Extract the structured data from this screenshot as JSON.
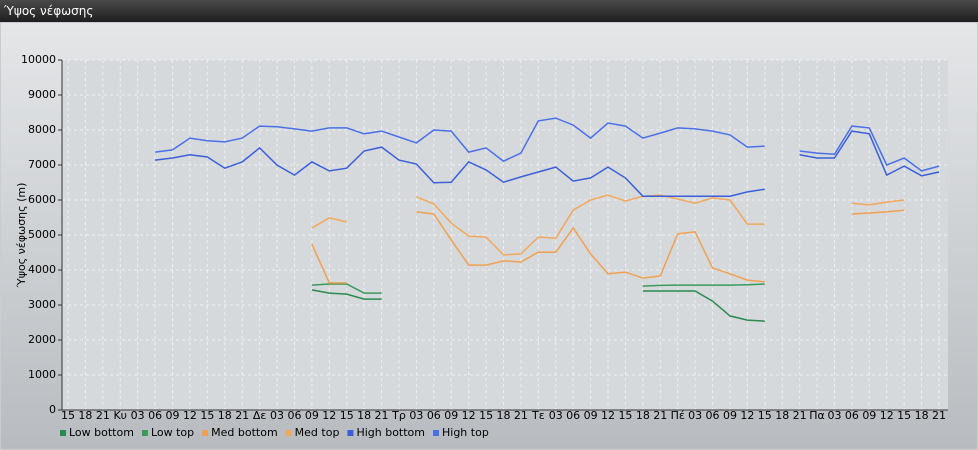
{
  "chart_data": {
    "type": "line",
    "title": "Ύψος νέφωσης",
    "y_label": "Ύψος νέφωσης (m)",
    "categories": [
      "15",
      "18",
      "21",
      "Κυ",
      "03",
      "06",
      "09",
      "12",
      "15",
      "18",
      "21",
      "Δε",
      "03",
      "06",
      "09",
      "12",
      "15",
      "18",
      "21",
      "Τρ",
      "03",
      "06",
      "09",
      "12",
      "15",
      "18",
      "21",
      "Τε",
      "03",
      "06",
      "09",
      "12",
      "15",
      "18",
      "21",
      "Πέ",
      "03",
      "06",
      "09",
      "12",
      "15",
      "18",
      "21",
      "Πα",
      "03",
      "06",
      "09",
      "12",
      "15",
      "18",
      "21"
    ],
    "ylim": [
      0,
      10000
    ],
    "yticks": [
      0,
      1000,
      2000,
      3000,
      4000,
      5000,
      6000,
      7000,
      8000,
      9000,
      10000
    ],
    "grid": true,
    "series": [
      {
        "name": "Low bottom",
        "color": "#2a8a4e",
        "values": [
          null,
          null,
          null,
          null,
          null,
          null,
          null,
          null,
          null,
          null,
          null,
          null,
          null,
          null,
          3430,
          3340,
          3310,
          3170,
          3170,
          null,
          null,
          null,
          null,
          null,
          null,
          null,
          null,
          null,
          null,
          null,
          null,
          null,
          null,
          3400,
          3400,
          3400,
          3400,
          3110,
          2690,
          2570,
          2540,
          null,
          null,
          null,
          null,
          null,
          null,
          null,
          null,
          null,
          null
        ]
      },
      {
        "name": "Low top",
        "color": "#3a9a5c",
        "values": [
          null,
          null,
          null,
          null,
          null,
          null,
          null,
          null,
          null,
          null,
          null,
          null,
          null,
          null,
          3570,
          3600,
          3600,
          3340,
          3340,
          null,
          null,
          null,
          null,
          null,
          null,
          null,
          null,
          null,
          null,
          null,
          null,
          null,
          null,
          3540,
          3560,
          3570,
          3570,
          3570,
          3570,
          3580,
          3600,
          null,
          null,
          null,
          null,
          null,
          null,
          null,
          null,
          null,
          null
        ]
      },
      {
        "name": "Med bottom",
        "color": "#f0a050",
        "values": [
          null,
          null,
          null,
          null,
          null,
          null,
          null,
          null,
          null,
          null,
          null,
          null,
          null,
          null,
          4740,
          3630,
          3630,
          null,
          null,
          null,
          5660,
          5600,
          4860,
          4140,
          4140,
          4260,
          4230,
          4510,
          4510,
          5200,
          4460,
          3890,
          3940,
          3770,
          3830,
          5030,
          5090,
          4060,
          3890,
          3710,
          3660,
          null,
          null,
          null,
          null,
          5600,
          5630,
          5660,
          5710,
          null,
          null
        ]
      },
      {
        "name": "Med top",
        "color": "#f2a85a",
        "values": [
          null,
          null,
          null,
          null,
          null,
          null,
          null,
          null,
          null,
          null,
          null,
          null,
          null,
          null,
          5200,
          5490,
          5370,
          null,
          null,
          null,
          6090,
          5890,
          5340,
          4970,
          4940,
          4430,
          4460,
          4940,
          4910,
          5710,
          6000,
          6140,
          5970,
          6110,
          6140,
          6030,
          5910,
          6060,
          6000,
          5310,
          5310,
          null,
          null,
          null,
          null,
          5910,
          5860,
          5940,
          6000,
          null,
          null
        ]
      },
      {
        "name": "High bottom",
        "color": "#3a5fd8",
        "values": [
          null,
          null,
          null,
          null,
          null,
          7140,
          7200,
          7290,
          7230,
          6910,
          7090,
          7490,
          7000,
          6710,
          7090,
          6830,
          6910,
          7400,
          7510,
          7140,
          7030,
          6490,
          6510,
          7090,
          6860,
          6510,
          6660,
          6800,
          6940,
          6540,
          6630,
          6940,
          6630,
          6110,
          6110,
          6110,
          6110,
          6110,
          6110,
          6230,
          6310,
          null,
          7290,
          7200,
          7200,
          7970,
          7890,
          6710,
          6970,
          6690,
          6800
        ]
      },
      {
        "name": "High top",
        "color": "#4a70e8",
        "values": [
          null,
          null,
          null,
          null,
          null,
          7370,
          7430,
          7770,
          7690,
          7660,
          7770,
          8110,
          8090,
          8030,
          7970,
          8060,
          8060,
          7890,
          7970,
          7800,
          7630,
          8000,
          7970,
          7370,
          7490,
          7110,
          7340,
          8260,
          8340,
          8140,
          7770,
          8200,
          8110,
          7770,
          7910,
          8060,
          8030,
          7970,
          7860,
          7510,
          7540,
          null,
          7400,
          7340,
          7310,
          8110,
          8060,
          7000,
          7200,
          6830,
          6970
        ]
      }
    ]
  }
}
